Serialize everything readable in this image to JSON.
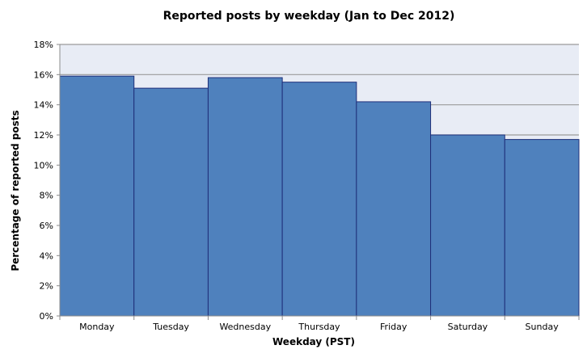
{
  "chart_data": {
    "type": "bar",
    "title": "Reported posts by weekday (Jan to Dec 2012)",
    "xlabel": "Weekday (PST)",
    "ylabel": "Percentage of reported posts",
    "categories": [
      "Monday",
      "Tuesday",
      "Wednesday",
      "Thursday",
      "Friday",
      "Saturday",
      "Sunday"
    ],
    "values": [
      15.9,
      15.1,
      15.8,
      15.5,
      14.2,
      12.0,
      11.7
    ],
    "ylim": [
      0,
      18
    ],
    "yticks": [
      0,
      2,
      4,
      6,
      8,
      10,
      12,
      14,
      16,
      18
    ],
    "ytick_labels": [
      "0%",
      "2%",
      "4%",
      "6%",
      "8%",
      "10%",
      "12%",
      "14%",
      "16%",
      "18%"
    ],
    "grid": true,
    "colors": {
      "bar_fill": "#4f81bd",
      "bar_stroke": "#1f2f7a",
      "plot_background": "#e8ecf5",
      "gridline": "#9a9a9a",
      "axis": "#8c8c8c"
    }
  }
}
